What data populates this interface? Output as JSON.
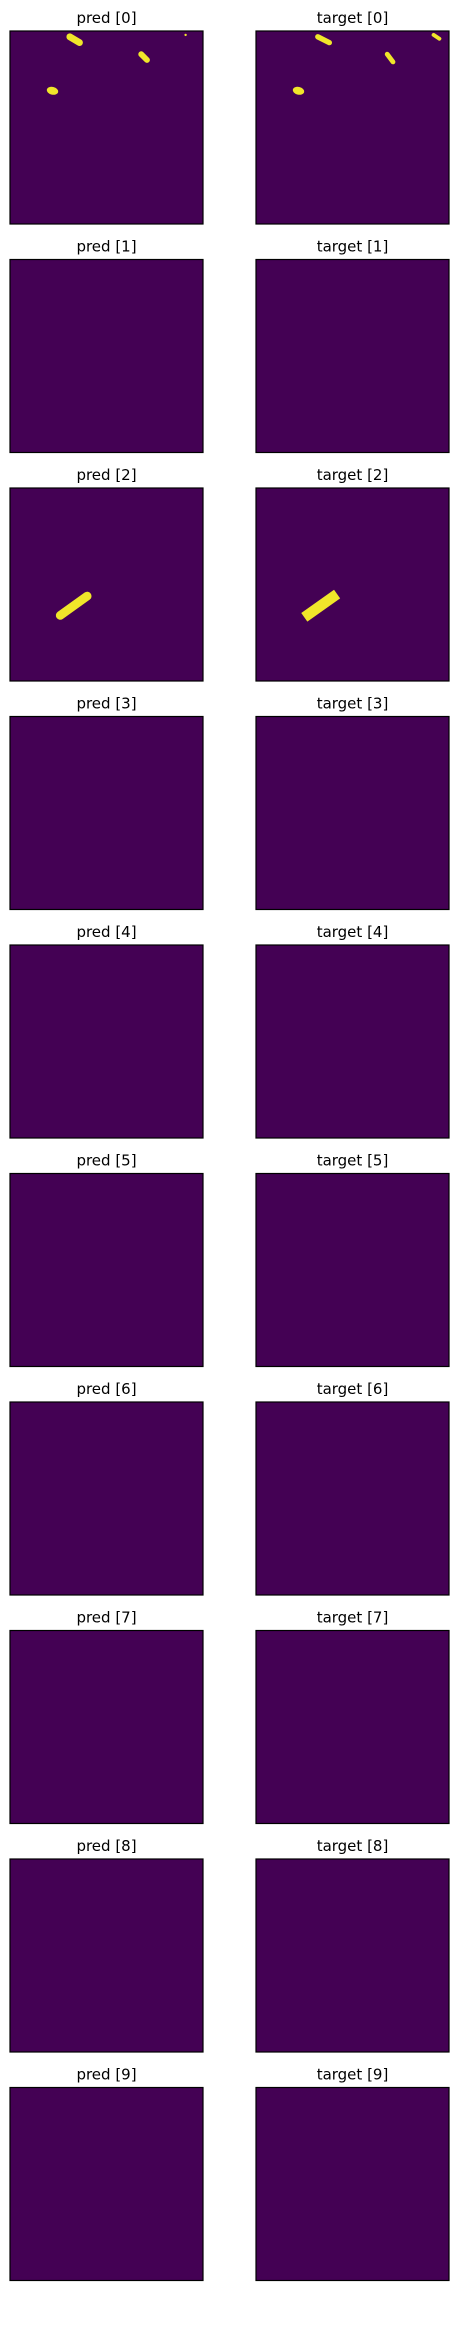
{
  "figure": {
    "background": "#ffffff",
    "mask_background_color": "#440154",
    "mask_foreground_color": "#f0e62a",
    "frame_color": "#000000"
  },
  "chart_data": {
    "type": "heatmap",
    "colormap": "viridis",
    "axes_visible": false,
    "grid": false,
    "legend": "none",
    "columns": [
      "pred",
      "target"
    ],
    "panels": [
      {
        "row": 0,
        "col": 0,
        "title": "pred [0]",
        "blobs": [
          {
            "shape": "segment",
            "x1": 0.31,
            "y1": 0.03,
            "x2": 0.36,
            "y2": 0.06,
            "w": 0.035
          },
          {
            "shape": "segment",
            "x1": 0.68,
            "y1": 0.12,
            "x2": 0.71,
            "y2": 0.15,
            "w": 0.03
          },
          {
            "shape": "ellipse",
            "cx": 0.22,
            "cy": 0.31,
            "rx": 0.03,
            "ry": 0.02
          },
          {
            "shape": "dot",
            "cx": 0.91,
            "cy": 0.02,
            "r": 0.006
          }
        ]
      },
      {
        "row": 0,
        "col": 1,
        "title": "target [0]",
        "blobs": [
          {
            "shape": "segment",
            "x1": 0.32,
            "y1": 0.03,
            "x2": 0.38,
            "y2": 0.06,
            "w": 0.028
          },
          {
            "shape": "segment",
            "x1": 0.68,
            "y1": 0.12,
            "x2": 0.71,
            "y2": 0.16,
            "w": 0.025
          },
          {
            "shape": "ellipse",
            "cx": 0.22,
            "cy": 0.31,
            "rx": 0.03,
            "ry": 0.02
          },
          {
            "shape": "segment",
            "x1": 0.92,
            "y1": 0.02,
            "x2": 0.95,
            "y2": 0.04,
            "w": 0.02
          }
        ]
      },
      {
        "row": 1,
        "col": 0,
        "title": "pred [1]",
        "blobs": []
      },
      {
        "row": 1,
        "col": 1,
        "title": "target [1]",
        "blobs": []
      },
      {
        "row": 2,
        "col": 0,
        "title": "pred [2]",
        "blobs": [
          {
            "shape": "segment",
            "x1": 0.26,
            "y1": 0.66,
            "x2": 0.4,
            "y2": 0.56,
            "w": 0.045
          }
        ]
      },
      {
        "row": 2,
        "col": 1,
        "title": "target [2]",
        "blobs": [
          {
            "shape": "segment",
            "x1": 0.25,
            "y1": 0.67,
            "x2": 0.42,
            "y2": 0.55,
            "w": 0.055,
            "cap": "butt"
          }
        ]
      },
      {
        "row": 3,
        "col": 0,
        "title": "pred [3]",
        "blobs": []
      },
      {
        "row": 3,
        "col": 1,
        "title": "target [3]",
        "blobs": []
      },
      {
        "row": 4,
        "col": 0,
        "title": "pred [4]",
        "blobs": []
      },
      {
        "row": 4,
        "col": 1,
        "title": "target [4]",
        "blobs": []
      },
      {
        "row": 5,
        "col": 0,
        "title": "pred [5]",
        "blobs": []
      },
      {
        "row": 5,
        "col": 1,
        "title": "target [5]",
        "blobs": []
      },
      {
        "row": 6,
        "col": 0,
        "title": "pred [6]",
        "blobs": []
      },
      {
        "row": 6,
        "col": 1,
        "title": "target [6]",
        "blobs": []
      },
      {
        "row": 7,
        "col": 0,
        "title": "pred [7]",
        "blobs": []
      },
      {
        "row": 7,
        "col": 1,
        "title": "target [7]",
        "blobs": []
      },
      {
        "row": 8,
        "col": 0,
        "title": "pred [8]",
        "blobs": []
      },
      {
        "row": 8,
        "col": 1,
        "title": "target [8]",
        "blobs": []
      },
      {
        "row": 9,
        "col": 0,
        "title": "pred [9]",
        "blobs": []
      },
      {
        "row": 9,
        "col": 1,
        "title": "target [9]",
        "blobs": []
      }
    ]
  }
}
